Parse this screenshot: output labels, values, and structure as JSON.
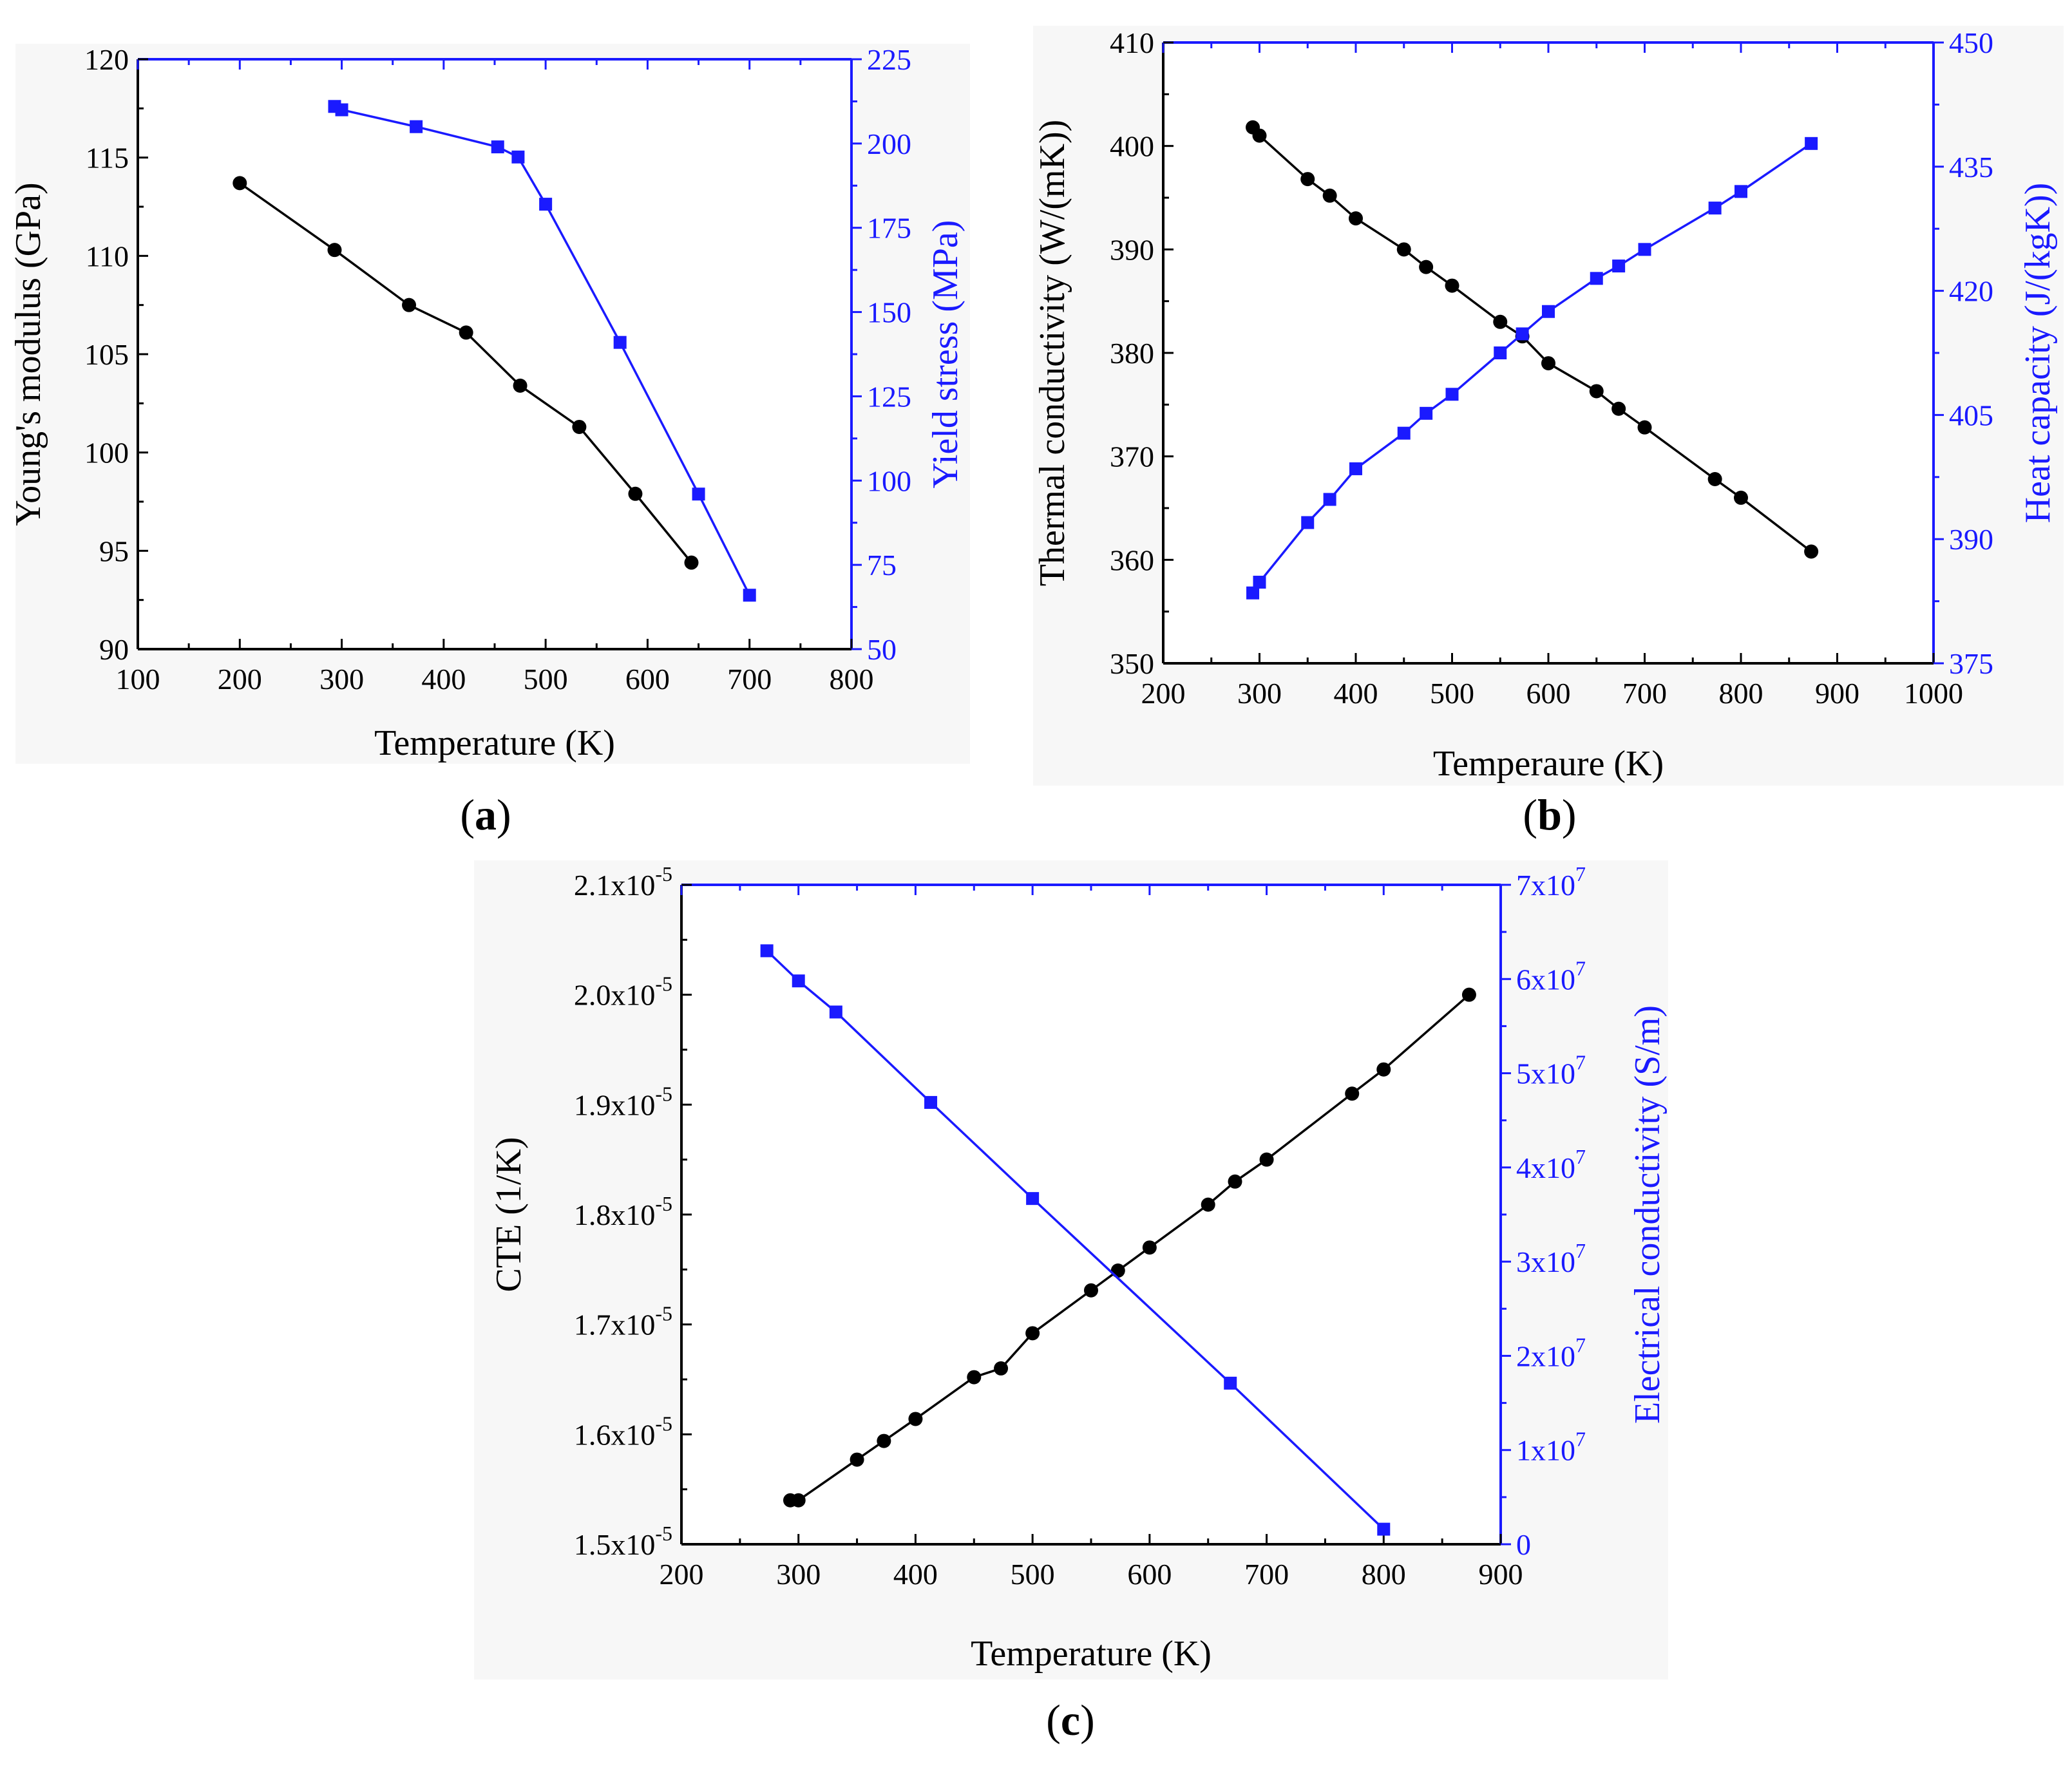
{
  "chart_data": [
    {
      "type": "line",
      "panel_label": "a",
      "xlabel": "Temperature (K)",
      "ylabel_left": "Young's modulus (GPa)",
      "ylabel_right": "Yield stress (MPa)",
      "xlim": [
        100,
        800
      ],
      "ylim_left": [
        90,
        120
      ],
      "ylim_right": [
        50,
        225
      ],
      "x_ticks": [
        "100",
        "200",
        "300",
        "400",
        "500",
        "600",
        "700",
        "800"
      ],
      "y_left_ticks": [
        "90",
        "95",
        "100",
        "105",
        "110",
        "115",
        "120"
      ],
      "y_right_ticks": [
        "50",
        "75",
        "100",
        "125",
        "150",
        "175",
        "200",
        "225"
      ],
      "series": [
        {
          "name": "Young's modulus",
          "axis": "left",
          "color": "#000000",
          "marker": "circle",
          "x": [
            200,
            293,
            366,
            422,
            475,
            533,
            588,
            643
          ],
          "y": [
            113.7,
            110.3,
            107.5,
            106.1,
            103.4,
            101.3,
            97.9,
            94.4
          ]
        },
        {
          "name": "Yield stress",
          "axis": "right",
          "color": "#1a1aff",
          "marker": "square",
          "x": [
            293,
            300,
            373,
            453,
            473,
            500,
            573,
            650,
            700
          ],
          "y": [
            211,
            210,
            205,
            199,
            196,
            182,
            141,
            96,
            66
          ]
        }
      ]
    },
    {
      "type": "line",
      "panel_label": "b",
      "xlabel": "Temperaure (K)",
      "ylabel_left": "Thermal conductivity (W/(mK))",
      "ylabel_right": "Heat capacity (J/(kgK))",
      "xlim": [
        200,
        1000
      ],
      "ylim_left": [
        350,
        410
      ],
      "ylim_right": [
        375,
        450
      ],
      "x_ticks": [
        "200",
        "300",
        "400",
        "500",
        "600",
        "700",
        "800",
        "900",
        "1000"
      ],
      "y_left_ticks": [
        "350",
        "360",
        "370",
        "380",
        "390",
        "400",
        "410"
      ],
      "y_right_ticks": [
        "375",
        "390",
        "405",
        "420",
        "435",
        "450"
      ],
      "series": [
        {
          "name": "Thermal conductivity",
          "axis": "left",
          "color": "#000000",
          "marker": "circle",
          "x": [
            293,
            300,
            350,
            373,
            400,
            450,
            473,
            500,
            550,
            573,
            600,
            650,
            673,
            700,
            773,
            800,
            873
          ],
          "y": [
            401.8,
            401.0,
            396.8,
            395.2,
            393.0,
            390.0,
            388.3,
            386.5,
            383.0,
            381.6,
            379.0,
            376.3,
            374.6,
            372.8,
            367.8,
            366.0,
            360.8
          ]
        },
        {
          "name": "Heat capacity",
          "axis": "right",
          "color": "#1a1aff",
          "marker": "square",
          "x": [
            293,
            300,
            350,
            373,
            400,
            450,
            473,
            500,
            550,
            573,
            600,
            650,
            673,
            700,
            773,
            800,
            873
          ],
          "y": [
            383.5,
            384.8,
            392.0,
            394.8,
            398.5,
            402.8,
            405.2,
            407.5,
            412.5,
            414.8,
            417.5,
            421.5,
            423.0,
            425.0,
            430.0,
            432.0,
            437.8
          ]
        }
      ]
    },
    {
      "type": "line",
      "panel_label": "c",
      "xlabel": "Temperature (K)",
      "ylabel_left": "CTE (1/K)",
      "ylabel_right": "Electrical conductivity (S/m)",
      "xlim": [
        200,
        900
      ],
      "ylim_left": [
        1.5e-05,
        2.1e-05
      ],
      "ylim_right": [
        0,
        70000000
      ],
      "x_ticks": [
        "200",
        "300",
        "400",
        "500",
        "600",
        "700",
        "800",
        "900"
      ],
      "y_left_ticks": [
        {
          "mantissa": "1.5x10",
          "exp": "-5"
        },
        {
          "mantissa": "1.6x10",
          "exp": "-5"
        },
        {
          "mantissa": "1.7x10",
          "exp": "-5"
        },
        {
          "mantissa": "1.8x10",
          "exp": "-5"
        },
        {
          "mantissa": "1.9x10",
          "exp": "-5"
        },
        {
          "mantissa": "2.0x10",
          "exp": "-5"
        },
        {
          "mantissa": "2.1x10",
          "exp": "-5"
        }
      ],
      "y_right_ticks": [
        {
          "mantissa": "0",
          "exp": ""
        },
        {
          "mantissa": "1x10",
          "exp": "7"
        },
        {
          "mantissa": "2x10",
          "exp": "7"
        },
        {
          "mantissa": "3x10",
          "exp": "7"
        },
        {
          "mantissa": "4x10",
          "exp": "7"
        },
        {
          "mantissa": "5x10",
          "exp": "7"
        },
        {
          "mantissa": "6x10",
          "exp": "7"
        },
        {
          "mantissa": "7x10",
          "exp": "7"
        }
      ],
      "series": [
        {
          "name": "CTE",
          "axis": "left",
          "color": "#000000",
          "marker": "circle",
          "x": [
            293,
            300,
            350,
            373,
            400,
            450,
            473,
            500,
            550,
            573,
            600,
            650,
            673,
            700,
            773,
            800,
            873
          ],
          "y": [
            1.54e-05,
            1.54e-05,
            1.577e-05,
            1.594e-05,
            1.614e-05,
            1.652e-05,
            1.66e-05,
            1.692e-05,
            1.731e-05,
            1.749e-05,
            1.77e-05,
            1.809e-05,
            1.83e-05,
            1.85e-05,
            1.91e-05,
            1.932e-05,
            2e-05
          ]
        },
        {
          "name": "Electrical conductivity",
          "axis": "right",
          "color": "#1a1aff",
          "marker": "square",
          "x": [
            273,
            300,
            332,
            413,
            500,
            669,
            800
          ],
          "y": [
            63000000,
            59800000,
            56500000,
            46900000,
            36700000,
            17100000,
            1600000
          ]
        }
      ]
    }
  ]
}
